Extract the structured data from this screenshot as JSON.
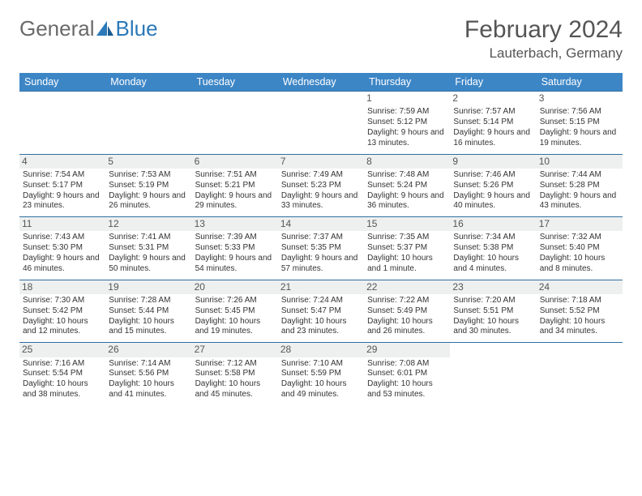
{
  "logo": {
    "text1": "General",
    "text2": "Blue"
  },
  "title": "February 2024",
  "location": "Lauterbach, Germany",
  "colors": {
    "header_bg": "#3d86c6",
    "header_text": "#ffffff",
    "row_border": "#2f6fa3",
    "daynum_bg": "#eef0f0",
    "logo_grey": "#6a6a6a",
    "logo_blue": "#2b79b9",
    "body_text": "#333333"
  },
  "typography": {
    "title_fontsize": 30,
    "location_fontsize": 17,
    "th_fontsize": 12.5,
    "cell_fontsize": 10,
    "daynum_fontsize": 12
  },
  "day_headers": [
    "Sunday",
    "Monday",
    "Tuesday",
    "Wednesday",
    "Thursday",
    "Friday",
    "Saturday"
  ],
  "weeks": [
    [
      null,
      null,
      null,
      null,
      {
        "n": "1",
        "sr": "7:59 AM",
        "ss": "5:12 PM",
        "dl": "Daylight: 9 hours and 13 minutes."
      },
      {
        "n": "2",
        "sr": "7:57 AM",
        "ss": "5:14 PM",
        "dl": "Daylight: 9 hours and 16 minutes."
      },
      {
        "n": "3",
        "sr": "7:56 AM",
        "ss": "5:15 PM",
        "dl": "Daylight: 9 hours and 19 minutes."
      }
    ],
    [
      {
        "n": "4",
        "sr": "7:54 AM",
        "ss": "5:17 PM",
        "dl": "Daylight: 9 hours and 23 minutes."
      },
      {
        "n": "5",
        "sr": "7:53 AM",
        "ss": "5:19 PM",
        "dl": "Daylight: 9 hours and 26 minutes."
      },
      {
        "n": "6",
        "sr": "7:51 AM",
        "ss": "5:21 PM",
        "dl": "Daylight: 9 hours and 29 minutes."
      },
      {
        "n": "7",
        "sr": "7:49 AM",
        "ss": "5:23 PM",
        "dl": "Daylight: 9 hours and 33 minutes."
      },
      {
        "n": "8",
        "sr": "7:48 AM",
        "ss": "5:24 PM",
        "dl": "Daylight: 9 hours and 36 minutes."
      },
      {
        "n": "9",
        "sr": "7:46 AM",
        "ss": "5:26 PM",
        "dl": "Daylight: 9 hours and 40 minutes."
      },
      {
        "n": "10",
        "sr": "7:44 AM",
        "ss": "5:28 PM",
        "dl": "Daylight: 9 hours and 43 minutes."
      }
    ],
    [
      {
        "n": "11",
        "sr": "7:43 AM",
        "ss": "5:30 PM",
        "dl": "Daylight: 9 hours and 46 minutes."
      },
      {
        "n": "12",
        "sr": "7:41 AM",
        "ss": "5:31 PM",
        "dl": "Daylight: 9 hours and 50 minutes."
      },
      {
        "n": "13",
        "sr": "7:39 AM",
        "ss": "5:33 PM",
        "dl": "Daylight: 9 hours and 54 minutes."
      },
      {
        "n": "14",
        "sr": "7:37 AM",
        "ss": "5:35 PM",
        "dl": "Daylight: 9 hours and 57 minutes."
      },
      {
        "n": "15",
        "sr": "7:35 AM",
        "ss": "5:37 PM",
        "dl": "Daylight: 10 hours and 1 minute."
      },
      {
        "n": "16",
        "sr": "7:34 AM",
        "ss": "5:38 PM",
        "dl": "Daylight: 10 hours and 4 minutes."
      },
      {
        "n": "17",
        "sr": "7:32 AM",
        "ss": "5:40 PM",
        "dl": "Daylight: 10 hours and 8 minutes."
      }
    ],
    [
      {
        "n": "18",
        "sr": "7:30 AM",
        "ss": "5:42 PM",
        "dl": "Daylight: 10 hours and 12 minutes."
      },
      {
        "n": "19",
        "sr": "7:28 AM",
        "ss": "5:44 PM",
        "dl": "Daylight: 10 hours and 15 minutes."
      },
      {
        "n": "20",
        "sr": "7:26 AM",
        "ss": "5:45 PM",
        "dl": "Daylight: 10 hours and 19 minutes."
      },
      {
        "n": "21",
        "sr": "7:24 AM",
        "ss": "5:47 PM",
        "dl": "Daylight: 10 hours and 23 minutes."
      },
      {
        "n": "22",
        "sr": "7:22 AM",
        "ss": "5:49 PM",
        "dl": "Daylight: 10 hours and 26 minutes."
      },
      {
        "n": "23",
        "sr": "7:20 AM",
        "ss": "5:51 PM",
        "dl": "Daylight: 10 hours and 30 minutes."
      },
      {
        "n": "24",
        "sr": "7:18 AM",
        "ss": "5:52 PM",
        "dl": "Daylight: 10 hours and 34 minutes."
      }
    ],
    [
      {
        "n": "25",
        "sr": "7:16 AM",
        "ss": "5:54 PM",
        "dl": "Daylight: 10 hours and 38 minutes."
      },
      {
        "n": "26",
        "sr": "7:14 AM",
        "ss": "5:56 PM",
        "dl": "Daylight: 10 hours and 41 minutes."
      },
      {
        "n": "27",
        "sr": "7:12 AM",
        "ss": "5:58 PM",
        "dl": "Daylight: 10 hours and 45 minutes."
      },
      {
        "n": "28",
        "sr": "7:10 AM",
        "ss": "5:59 PM",
        "dl": "Daylight: 10 hours and 49 minutes."
      },
      {
        "n": "29",
        "sr": "7:08 AM",
        "ss": "6:01 PM",
        "dl": "Daylight: 10 hours and 53 minutes."
      },
      null,
      null
    ]
  ]
}
